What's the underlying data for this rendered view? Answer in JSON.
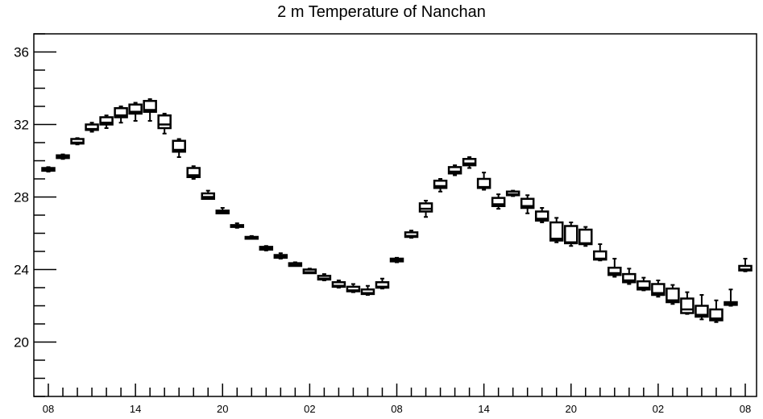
{
  "chart_data": {
    "type": "boxplot",
    "title": "2 m Temperature of Nanchan",
    "xlabel": "",
    "ylabel": "",
    "ylim": [
      17,
      37
    ],
    "y_ticks": [
      20,
      24,
      28,
      32,
      36
    ],
    "x_tick_labels": [
      "08",
      "14",
      "20",
      "02",
      "08",
      "14",
      "20",
      "02",
      "08"
    ],
    "grid": false,
    "boxes": [
      {
        "t": 0,
        "min": 29.4,
        "q1": 29.45,
        "median": 29.5,
        "q3": 29.6,
        "max": 29.65
      },
      {
        "t": 1,
        "min": 30.1,
        "q1": 30.15,
        "median": 30.2,
        "q3": 30.3,
        "max": 30.35
      },
      {
        "t": 2,
        "min": 30.9,
        "q1": 30.95,
        "median": 31.0,
        "q3": 31.2,
        "max": 31.25
      },
      {
        "t": 3,
        "min": 31.6,
        "q1": 31.7,
        "median": 31.75,
        "q3": 32.0,
        "max": 32.1
      },
      {
        "t": 4,
        "min": 31.8,
        "q1": 32.0,
        "median": 32.1,
        "q3": 32.4,
        "max": 32.5
      },
      {
        "t": 5,
        "min": 32.1,
        "q1": 32.4,
        "median": 32.5,
        "q3": 32.9,
        "max": 33.0
      },
      {
        "t": 6,
        "min": 32.2,
        "q1": 32.6,
        "median": 32.7,
        "q3": 33.1,
        "max": 33.2
      },
      {
        "t": 7,
        "min": 32.2,
        "q1": 32.7,
        "median": 32.8,
        "q3": 33.3,
        "max": 33.4
      },
      {
        "t": 8,
        "min": 31.5,
        "q1": 31.8,
        "median": 32.0,
        "q3": 32.5,
        "max": 32.6
      },
      {
        "t": 9,
        "min": 30.2,
        "q1": 30.5,
        "median": 30.6,
        "q3": 31.1,
        "max": 31.2
      },
      {
        "t": 10,
        "min": 29.0,
        "q1": 29.1,
        "median": 29.2,
        "q3": 29.6,
        "max": 29.7
      },
      {
        "t": 11,
        "min": 27.9,
        "q1": 27.9,
        "median": 28.0,
        "q3": 28.2,
        "max": 28.35
      },
      {
        "t": 12,
        "min": 27.1,
        "q1": 27.1,
        "median": 27.15,
        "q3": 27.25,
        "max": 27.4
      },
      {
        "t": 13,
        "min": 26.3,
        "q1": 26.35,
        "median": 26.4,
        "q3": 26.45,
        "max": 26.55
      },
      {
        "t": 14,
        "min": 25.7,
        "q1": 25.7,
        "median": 25.75,
        "q3": 25.8,
        "max": 25.85
      },
      {
        "t": 15,
        "min": 25.05,
        "q1": 25.1,
        "median": 25.15,
        "q3": 25.25,
        "max": 25.3
      },
      {
        "t": 16,
        "min": 24.6,
        "q1": 24.65,
        "median": 24.7,
        "q3": 24.8,
        "max": 24.9
      },
      {
        "t": 17,
        "min": 24.2,
        "q1": 24.2,
        "median": 24.25,
        "q3": 24.35,
        "max": 24.4
      },
      {
        "t": 18,
        "min": 23.8,
        "q1": 23.8,
        "median": 23.85,
        "q3": 24.0,
        "max": 24.05
      },
      {
        "t": 19,
        "min": 23.4,
        "q1": 23.45,
        "median": 23.5,
        "q3": 23.65,
        "max": 23.75
      },
      {
        "t": 20,
        "min": 23.0,
        "q1": 23.05,
        "median": 23.1,
        "q3": 23.3,
        "max": 23.4
      },
      {
        "t": 21,
        "min": 22.75,
        "q1": 22.8,
        "median": 22.85,
        "q3": 23.05,
        "max": 23.2
      },
      {
        "t": 22,
        "min": 22.6,
        "q1": 22.65,
        "median": 22.7,
        "q3": 22.9,
        "max": 23.1
      },
      {
        "t": 23,
        "min": 22.95,
        "q1": 23.0,
        "median": 23.05,
        "q3": 23.3,
        "max": 23.5
      },
      {
        "t": 24,
        "min": 24.4,
        "q1": 24.45,
        "median": 24.5,
        "q3": 24.6,
        "max": 24.65
      },
      {
        "t": 25,
        "min": 25.75,
        "q1": 25.8,
        "median": 25.85,
        "q3": 26.05,
        "max": 26.15
      },
      {
        "t": 26,
        "min": 26.9,
        "q1": 27.2,
        "median": 27.35,
        "q3": 27.65,
        "max": 27.8
      },
      {
        "t": 27,
        "min": 28.3,
        "q1": 28.5,
        "median": 28.6,
        "q3": 28.9,
        "max": 29.0
      },
      {
        "t": 28,
        "min": 29.2,
        "q1": 29.3,
        "median": 29.4,
        "q3": 29.65,
        "max": 29.75
      },
      {
        "t": 29,
        "min": 29.6,
        "q1": 29.75,
        "median": 29.85,
        "q3": 30.1,
        "max": 30.2
      },
      {
        "t": 30,
        "min": 28.4,
        "q1": 28.5,
        "median": 28.55,
        "q3": 29.0,
        "max": 29.35
      },
      {
        "t": 31,
        "min": 27.35,
        "q1": 27.5,
        "median": 27.6,
        "q3": 27.95,
        "max": 28.15
      },
      {
        "t": 32,
        "min": 28.05,
        "q1": 28.1,
        "median": 28.15,
        "q3": 28.3,
        "max": 28.35
      },
      {
        "t": 33,
        "min": 27.1,
        "q1": 27.4,
        "median": 27.5,
        "q3": 27.9,
        "max": 28.1
      },
      {
        "t": 34,
        "min": 26.6,
        "q1": 26.7,
        "median": 26.8,
        "q3": 27.2,
        "max": 27.4
      },
      {
        "t": 35,
        "min": 25.5,
        "q1": 25.6,
        "median": 25.7,
        "q3": 26.6,
        "max": 26.85
      },
      {
        "t": 36,
        "min": 25.3,
        "q1": 25.45,
        "median": 25.5,
        "q3": 26.4,
        "max": 26.6
      },
      {
        "t": 37,
        "min": 25.3,
        "q1": 25.4,
        "median": 25.45,
        "q3": 26.2,
        "max": 26.35
      },
      {
        "t": 38,
        "min": 24.5,
        "q1": 24.55,
        "median": 24.6,
        "q3": 25.0,
        "max": 25.4
      },
      {
        "t": 39,
        "min": 23.6,
        "q1": 23.7,
        "median": 23.8,
        "q3": 24.1,
        "max": 24.6
      },
      {
        "t": 40,
        "min": 23.2,
        "q1": 23.3,
        "median": 23.4,
        "q3": 23.75,
        "max": 24.05
      },
      {
        "t": 41,
        "min": 22.85,
        "q1": 22.9,
        "median": 23.0,
        "q3": 23.35,
        "max": 23.55
      },
      {
        "t": 42,
        "min": 22.5,
        "q1": 22.6,
        "median": 22.7,
        "q3": 23.2,
        "max": 23.4
      },
      {
        "t": 43,
        "min": 22.1,
        "q1": 22.2,
        "median": 22.3,
        "q3": 22.95,
        "max": 23.15
      },
      {
        "t": 44,
        "min": 21.55,
        "q1": 21.6,
        "median": 21.8,
        "q3": 22.4,
        "max": 22.75
      },
      {
        "t": 45,
        "min": 21.25,
        "q1": 21.4,
        "median": 21.5,
        "q3": 22.0,
        "max": 22.6
      },
      {
        "t": 46,
        "min": 21.1,
        "q1": 21.2,
        "median": 21.3,
        "q3": 21.8,
        "max": 22.3
      },
      {
        "t": 47,
        "min": 22.0,
        "q1": 22.05,
        "median": 22.1,
        "q3": 22.2,
        "max": 22.9
      },
      {
        "t": 48,
        "min": 23.9,
        "q1": 23.95,
        "median": 24.0,
        "q3": 24.2,
        "max": 24.6
      }
    ]
  }
}
